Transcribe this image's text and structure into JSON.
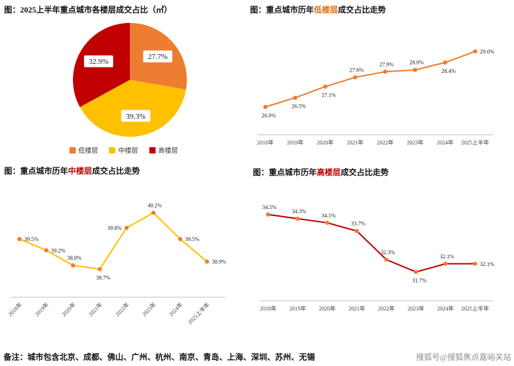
{
  "page": {
    "note": "备注：城市包含北京、成都、佛山、广州、杭州、南京、青岛、上海、深圳、苏州、无锡",
    "watermark": "搜狐号@搜狐焦点嘉峪关站"
  },
  "colors": {
    "low_floor": "#ED7D31",
    "mid_floor": "#FFC000",
    "high_floor": "#C00000",
    "axis": "#BFBFBF",
    "tick": "#404040",
    "data_label": "#1A1A1A",
    "watermark": "#8F8F8F"
  },
  "chart_data": [
    {
      "id": "pie-floor-share",
      "type": "pie",
      "title": "图：2025上半年重点城市各楼层成交占比（㎡）",
      "labels": [
        "低楼层",
        "中楼层",
        "高楼层"
      ],
      "values": [
        27.7,
        39.3,
        32.9
      ],
      "colors": [
        "#ED7D31",
        "#FFC000",
        "#C00000"
      ],
      "legend_position": "bottom"
    },
    {
      "id": "line-low-floor",
      "type": "line",
      "title_prefix": "图：重点城市历年",
      "title_keyword": "低楼层",
      "title_suffix": "成交占比走势",
      "keyword_color": "#E36C09",
      "categories": [
        "2018年",
        "2019年",
        "2020年",
        "2021年",
        "2022年",
        "2023年",
        "2024年",
        "2025上半年"
      ],
      "values": [
        26.0,
        26.5,
        27.1,
        27.6,
        27.9,
        28.0,
        28.4,
        29.0
      ],
      "ylabel": "",
      "line_color": "#ED7D31",
      "marker_color": "#ED7D31",
      "label_pos": [
        "below",
        "below",
        "below",
        "above",
        "above",
        "above",
        "below",
        "right"
      ],
      "x_label_rotate": false,
      "grid": false
    },
    {
      "id": "line-mid-floor",
      "type": "line",
      "title_prefix": "图：重点城市历年",
      "title_keyword": "中楼层",
      "title_suffix": "成交占比走势",
      "keyword_color": "#C00000",
      "categories": [
        "2018年",
        "2019年",
        "2020年",
        "2021年",
        "2022年",
        "2023年",
        "2024年",
        "2025上半年"
      ],
      "values": [
        39.5,
        39.2,
        38.8,
        38.7,
        39.8,
        40.2,
        39.5,
        38.9
      ],
      "ylabel": "",
      "line_color": "#FFC000",
      "marker_color": "#ED7D31",
      "label_pos": [
        "right",
        "right",
        "above",
        "below",
        "left",
        "above",
        "right",
        "right"
      ],
      "x_label_rotate": true,
      "grid": false
    },
    {
      "id": "line-high-floor",
      "type": "line",
      "title_prefix": "图：重点城市历年",
      "title_keyword": "高楼层",
      "title_suffix": "成交占比走势",
      "keyword_color": "#C00000",
      "categories": [
        "2018年",
        "2019年",
        "2020年",
        "2021年",
        "2022年",
        "2023年",
        "2024年",
        "2025上半年"
      ],
      "values": [
        34.5,
        34.3,
        34.1,
        33.7,
        32.3,
        31.7,
        32.1,
        32.1
      ],
      "ylabel": "",
      "line_color": "#C00000",
      "marker_color": "#ED7D31",
      "label_pos": [
        "above",
        "above",
        "above",
        "above",
        "above",
        "below",
        "above",
        "right"
      ],
      "x_label_rotate": false,
      "grid": false
    }
  ]
}
